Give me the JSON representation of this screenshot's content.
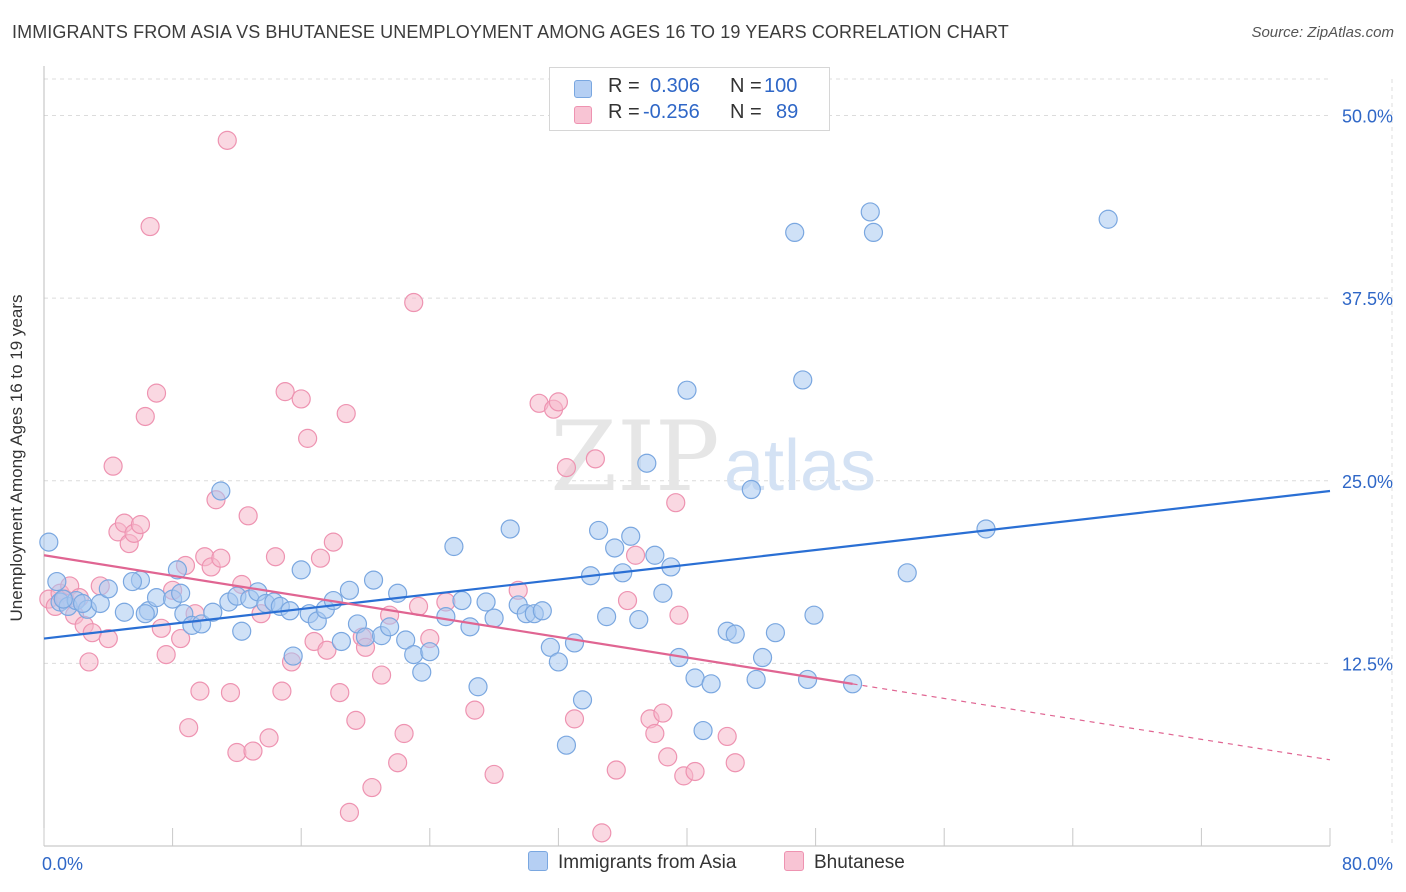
{
  "title": "IMMIGRANTS FROM ASIA VS BHUTANESE UNEMPLOYMENT AMONG AGES 16 TO 19 YEARS CORRELATION CHART",
  "source": "Source: ZipAtlas.com",
  "watermark": {
    "zip": "ZIP",
    "atlas": "atlas"
  },
  "colors": {
    "blue_fill": "#a8c8f0",
    "blue_stroke": "#7aa7e0",
    "blue_line": "#2a6fd4",
    "pink_fill": "#f6b8cb",
    "pink_stroke": "#ee93b1",
    "pink_line": "#e06592",
    "value_text": "#2f67c7",
    "grid": "#dcdcdc"
  },
  "legend_top": {
    "rows": [
      {
        "r_label": "R =",
        "r_value": "0.306",
        "n_label": "N =",
        "n_value": "100"
      },
      {
        "r_label": "R =",
        "r_value": "-0.256",
        "n_label": "N =",
        "n_value": "89"
      }
    ]
  },
  "legend_bottom": {
    "items": [
      {
        "label": "Immigrants from Asia"
      },
      {
        "label": "Bhutanese"
      }
    ]
  },
  "chart_data": {
    "type": "scatter",
    "title": "IMMIGRANTS FROM ASIA VS BHUTANESE UNEMPLOYMENT AMONG AGES 16 TO 19 YEARS CORRELATION CHART",
    "xlabel": "",
    "ylabel": "Unemployment Among Ages 16 to 19 years",
    "xlim": [
      0,
      80
    ],
    "ylim": [
      0,
      52.5
    ],
    "x_tick_labels": [
      {
        "value": 0,
        "label": "0.0%"
      },
      {
        "value": 80,
        "label": "80.0%"
      }
    ],
    "y_ticks": [
      {
        "value": 12.5,
        "label": "12.5%"
      },
      {
        "value": 25,
        "label": "25.0%"
      },
      {
        "value": 37.5,
        "label": "37.5%"
      },
      {
        "value": 50,
        "label": "50.0%"
      }
    ],
    "series": [
      {
        "name": "Immigrants from Asia",
        "color": "blue",
        "R": 0.306,
        "N": 100,
        "trend": {
          "x0": 0,
          "y0": 14.2,
          "x1": 80,
          "y1": 24.3,
          "dashed_from": null
        },
        "points": [
          [
            0.3,
            20.8
          ],
          [
            0.8,
            18.1
          ],
          [
            1,
            16.7
          ],
          [
            1.5,
            16.4
          ],
          [
            2,
            16.8
          ],
          [
            2.7,
            16.2
          ],
          [
            3.5,
            16.6
          ],
          [
            4,
            17.6
          ],
          [
            5,
            16
          ],
          [
            6,
            18.2
          ],
          [
            6.5,
            16.1
          ],
          [
            7,
            17
          ],
          [
            6.3,
            15.9
          ],
          [
            8,
            16.9
          ],
          [
            8.3,
            18.9
          ],
          [
            8.5,
            17.3
          ],
          [
            8.7,
            15.9
          ],
          [
            9.2,
            15.1
          ],
          [
            9.8,
            15.2
          ],
          [
            10.5,
            16
          ],
          [
            11,
            24.3
          ],
          [
            11.5,
            16.7
          ],
          [
            12,
            17.1
          ],
          [
            12.3,
            14.7
          ],
          [
            12.8,
            16.9
          ],
          [
            13.3,
            17.4
          ],
          [
            13.8,
            16.6
          ],
          [
            14.3,
            16.7
          ],
          [
            14.7,
            16.4
          ],
          [
            15.3,
            16.1
          ],
          [
            15.5,
            13
          ],
          [
            16,
            18.9
          ],
          [
            16.5,
            15.9
          ],
          [
            17,
            15.4
          ],
          [
            17.5,
            16.2
          ],
          [
            18,
            16.8
          ],
          [
            18.5,
            14
          ],
          [
            19,
            17.5
          ],
          [
            19.5,
            15.2
          ],
          [
            20.5,
            18.2
          ],
          [
            20,
            14.3
          ],
          [
            21,
            14.4
          ],
          [
            21.5,
            15
          ],
          [
            22,
            17.3
          ],
          [
            22.5,
            14.1
          ],
          [
            23,
            13.1
          ],
          [
            23.5,
            11.9
          ],
          [
            24,
            13.3
          ],
          [
            25,
            15.7
          ],
          [
            25.5,
            20.5
          ],
          [
            26,
            16.8
          ],
          [
            26.5,
            15
          ],
          [
            27,
            10.9
          ],
          [
            27.5,
            16.7
          ],
          [
            28,
            15.6
          ],
          [
            29,
            21.7
          ],
          [
            29.5,
            16.5
          ],
          [
            30,
            15.9
          ],
          [
            30.5,
            15.9
          ],
          [
            31,
            16.1
          ],
          [
            31.5,
            13.6
          ],
          [
            32,
            12.6
          ],
          [
            32.5,
            6.9
          ],
          [
            33,
            13.9
          ],
          [
            33.5,
            10
          ],
          [
            34,
            18.5
          ],
          [
            34.5,
            21.6
          ],
          [
            35,
            15.7
          ],
          [
            35.5,
            20.4
          ],
          [
            36,
            18.7
          ],
          [
            36.5,
            21.2
          ],
          [
            37,
            15.5
          ],
          [
            37.5,
            26.2
          ],
          [
            38,
            19.9
          ],
          [
            38.5,
            17.3
          ],
          [
            39,
            19.1
          ],
          [
            39.5,
            12.9
          ],
          [
            40,
            31.2
          ],
          [
            40.5,
            11.5
          ],
          [
            41,
            7.9
          ],
          [
            41.5,
            11.1
          ],
          [
            42.5,
            14.7
          ],
          [
            43,
            14.5
          ],
          [
            44,
            24.4
          ],
          [
            44.3,
            11.4
          ],
          [
            44.7,
            12.9
          ],
          [
            45.5,
            14.6
          ],
          [
            46.7,
            42
          ],
          [
            47.2,
            31.9
          ],
          [
            47.5,
            11.4
          ],
          [
            47.9,
            15.8
          ],
          [
            50.3,
            11.1
          ],
          [
            51.4,
            43.4
          ],
          [
            51.6,
            42
          ],
          [
            53.7,
            18.7
          ],
          [
            58.6,
            21.7
          ],
          [
            66.2,
            42.9
          ],
          [
            5.5,
            18.1
          ],
          [
            2.4,
            16.6
          ],
          [
            1.2,
            16.9
          ]
        ]
      },
      {
        "name": "Bhutanese",
        "color": "pink",
        "R": -0.256,
        "N": 89,
        "trend": {
          "x0": 0,
          "y0": 19.9,
          "x1": 80,
          "y1": 5.9,
          "dashed_from": 50.3
        },
        "points": [
          [
            0.3,
            16.9
          ],
          [
            0.7,
            16.4
          ],
          [
            1,
            17.3
          ],
          [
            1.3,
            16.9
          ],
          [
            1.6,
            17.8
          ],
          [
            1.9,
            15.8
          ],
          [
            2.2,
            17
          ],
          [
            2.5,
            15.1
          ],
          [
            2.8,
            12.6
          ],
          [
            3,
            14.6
          ],
          [
            3.5,
            17.8
          ],
          [
            4,
            14.2
          ],
          [
            4.3,
            26
          ],
          [
            4.6,
            21.5
          ],
          [
            5,
            22.1
          ],
          [
            5.3,
            20.7
          ],
          [
            5.6,
            21.4
          ],
          [
            6,
            22
          ],
          [
            6.3,
            29.4
          ],
          [
            6.6,
            42.4
          ],
          [
            7,
            31
          ],
          [
            7.3,
            14.9
          ],
          [
            7.6,
            13.1
          ],
          [
            8,
            17.5
          ],
          [
            8.5,
            14.2
          ],
          [
            8.8,
            19.2
          ],
          [
            9,
            8.1
          ],
          [
            9.4,
            15.9
          ],
          [
            9.7,
            10.6
          ],
          [
            10,
            19.8
          ],
          [
            10.4,
            19.1
          ],
          [
            10.7,
            23.7
          ],
          [
            11,
            19.7
          ],
          [
            11.4,
            48.3
          ],
          [
            11.6,
            10.5
          ],
          [
            12,
            6.4
          ],
          [
            12.3,
            17.9
          ],
          [
            12.7,
            22.6
          ],
          [
            13,
            6.5
          ],
          [
            13.5,
            15.9
          ],
          [
            14,
            7.4
          ],
          [
            14.4,
            19.8
          ],
          [
            14.8,
            10.6
          ],
          [
            15,
            31.1
          ],
          [
            15.4,
            12.6
          ],
          [
            16,
            30.6
          ],
          [
            16.4,
            27.9
          ],
          [
            16.8,
            14
          ],
          [
            17.2,
            19.7
          ],
          [
            17.6,
            13.4
          ],
          [
            18,
            20.8
          ],
          [
            18.4,
            10.5
          ],
          [
            18.8,
            29.6
          ],
          [
            19,
            2.3
          ],
          [
            19.4,
            8.6
          ],
          [
            19.8,
            14.3
          ],
          [
            20,
            13.6
          ],
          [
            20.4,
            4
          ],
          [
            21,
            11.7
          ],
          [
            21.5,
            15.8
          ],
          [
            22,
            5.7
          ],
          [
            22.4,
            7.7
          ],
          [
            23,
            37.2
          ],
          [
            23.3,
            16.4
          ],
          [
            24,
            14.2
          ],
          [
            25,
            16.7
          ],
          [
            26.8,
            9.3
          ],
          [
            28,
            4.9
          ],
          [
            29.5,
            17.5
          ],
          [
            30.8,
            30.3
          ],
          [
            31.7,
            29.9
          ],
          [
            32,
            30.4
          ],
          [
            32.5,
            25.9
          ],
          [
            33,
            8.7
          ],
          [
            34.3,
            26.5
          ],
          [
            34.7,
            0.9
          ],
          [
            35.6,
            5.2
          ],
          [
            36.3,
            16.8
          ],
          [
            36.8,
            19.9
          ],
          [
            37.7,
            8.7
          ],
          [
            38,
            7.7
          ],
          [
            38.5,
            9.1
          ],
          [
            38.8,
            6.1
          ],
          [
            39.3,
            23.5
          ],
          [
            39.8,
            4.8
          ],
          [
            40.5,
            5.1
          ],
          [
            42.5,
            7.5
          ],
          [
            43,
            5.7
          ],
          [
            39.5,
            15.8
          ]
        ]
      }
    ]
  }
}
